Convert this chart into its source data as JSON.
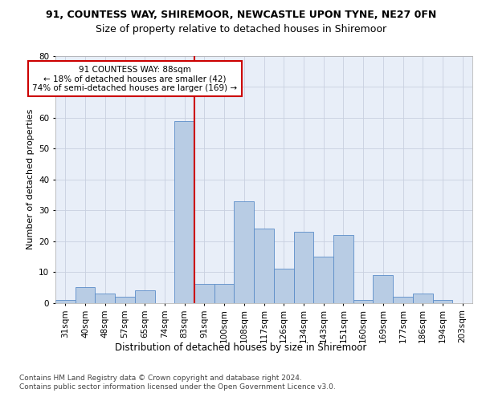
{
  "title1": "91, COUNTESS WAY, SHIREMOOR, NEWCASTLE UPON TYNE, NE27 0FN",
  "title2": "Size of property relative to detached houses in Shiremoor",
  "xlabel": "Distribution of detached houses by size in Shiremoor",
  "ylabel": "Number of detached properties",
  "categories": [
    "31sqm",
    "40sqm",
    "48sqm",
    "57sqm",
    "65sqm",
    "74sqm",
    "83sqm",
    "91sqm",
    "100sqm",
    "108sqm",
    "117sqm",
    "126sqm",
    "134sqm",
    "143sqm",
    "151sqm",
    "160sqm",
    "169sqm",
    "177sqm",
    "186sqm",
    "194sqm",
    "203sqm"
  ],
  "values": [
    1,
    5,
    3,
    2,
    4,
    0,
    59,
    6,
    6,
    33,
    24,
    11,
    23,
    15,
    22,
    1,
    9,
    2,
    3,
    1,
    0
  ],
  "bar_color": "#b8cce4",
  "bar_edge_color": "#5b8cc8",
  "vline_index": 6,
  "vline_color": "#cc0000",
  "annotation_text": "91 COUNTESS WAY: 88sqm\n← 18% of detached houses are smaller (42)\n74% of semi-detached houses are larger (169) →",
  "annotation_box_color": "#ffffff",
  "annotation_box_edge": "#cc0000",
  "ylim": [
    0,
    80
  ],
  "yticks": [
    0,
    10,
    20,
    30,
    40,
    50,
    60,
    70,
    80
  ],
  "background_color": "#e8eef8",
  "footer": "Contains HM Land Registry data © Crown copyright and database right 2024.\nContains public sector information licensed under the Open Government Licence v3.0.",
  "title1_fontsize": 9,
  "title2_fontsize": 9,
  "xlabel_fontsize": 8.5,
  "ylabel_fontsize": 8,
  "tick_fontsize": 7.5,
  "annotation_fontsize": 7.5,
  "footer_fontsize": 6.5
}
